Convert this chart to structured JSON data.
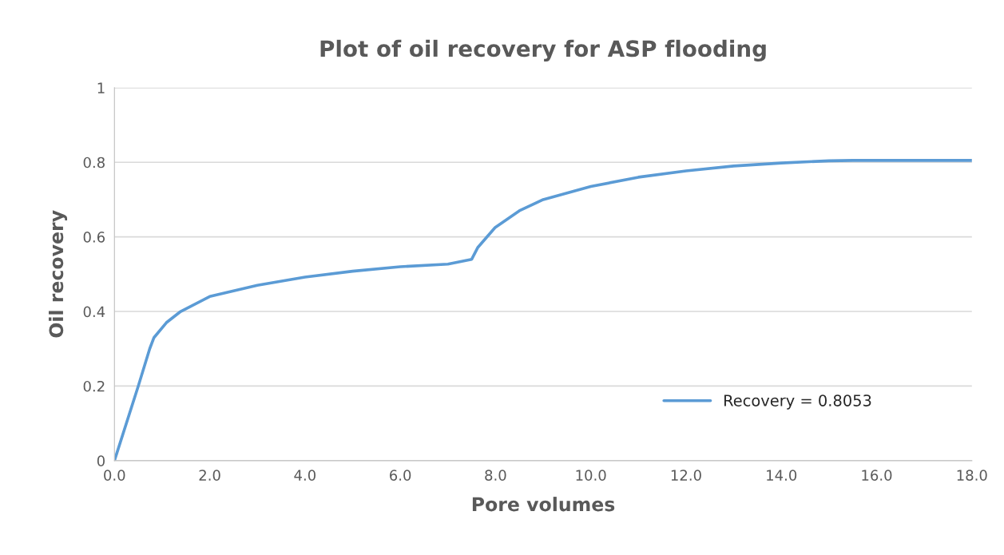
{
  "chart_data": {
    "type": "line",
    "title": "Plot of oil recovery for ASP flooding",
    "xlabel": "Pore volumes",
    "ylabel": "Oil recovery",
    "series": [
      {
        "name": "Recovery = 0.8053",
        "color": "#5b9bd5",
        "x": [
          0,
          0.5,
          0.74,
          0.83,
          1.09,
          1.39,
          2.0,
          3.0,
          4.0,
          5.0,
          6.0,
          7.0,
          7.5,
          7.63,
          7.99,
          8.5,
          9.0,
          10.0,
          11.0,
          12.0,
          13.0,
          14.0,
          15.0,
          15.5,
          18.0
        ],
        "values": [
          0,
          0.2,
          0.3,
          0.33,
          0.37,
          0.4,
          0.44,
          0.47,
          0.492,
          0.508,
          0.52,
          0.527,
          0.54,
          0.572,
          0.625,
          0.67,
          0.7,
          0.735,
          0.76,
          0.777,
          0.79,
          0.798,
          0.804,
          0.805,
          0.805
        ]
      }
    ],
    "xlim": [
      0,
      18
    ],
    "ylim": [
      0,
      1
    ],
    "xticks": [
      {
        "value": 0,
        "label": "0.0"
      },
      {
        "value": 2,
        "label": "2.0"
      },
      {
        "value": 4,
        "label": "4.0"
      },
      {
        "value": 6,
        "label": "6.0"
      },
      {
        "value": 8,
        "label": "8.0"
      },
      {
        "value": 10,
        "label": "10.0"
      },
      {
        "value": 12,
        "label": "12.0"
      },
      {
        "value": 14,
        "label": "14.0"
      },
      {
        "value": 16,
        "label": "16.0"
      },
      {
        "value": 18,
        "label": "18.0"
      }
    ],
    "yticks": [
      0,
      0.2,
      0.4,
      0.6,
      0.8,
      1
    ],
    "grid": "y",
    "legend": "bottom right",
    "marker": "none",
    "line_style": "solid"
  }
}
